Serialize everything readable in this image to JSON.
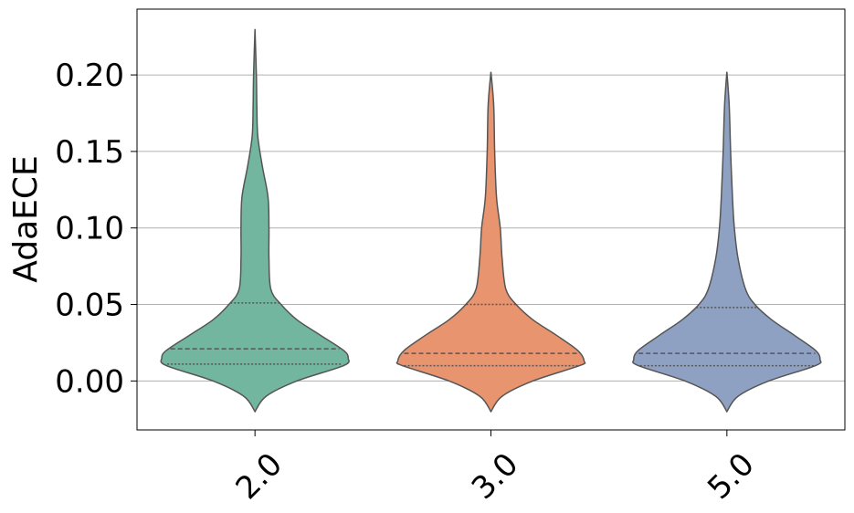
{
  "chart_data": {
    "type": "violin",
    "ylabel": "AdaECE",
    "categories": [
      "2.0",
      "3.0",
      "5.0"
    ],
    "ylim": [
      -0.032,
      0.243
    ],
    "yticks": [
      {
        "value": 0,
        "label": "0.00"
      },
      {
        "value": 0.05,
        "label": "0.05"
      },
      {
        "value": 0.1,
        "label": "0.10"
      },
      {
        "value": 0.15,
        "label": "0.15"
      },
      {
        "value": 0.2,
        "label": "0.20"
      }
    ],
    "grid": true,
    "edge_color": "#555555",
    "violins": [
      {
        "color": "#72b6a0",
        "q1": 0.011,
        "median": 0.021,
        "q3": 0.051,
        "kde_y": [
          -0.02,
          -0.01,
          0,
          0.01,
          0.015,
          0.02,
          0.03,
          0.04,
          0.05,
          0.06,
          0.08,
          0.1,
          0.12,
          0.14,
          0.16,
          0.18,
          0.2,
          0.23
        ],
        "kde_width": [
          0,
          0.12,
          0.45,
          0.95,
          1,
          0.95,
          0.7,
          0.45,
          0.28,
          0.17,
          0.15,
          0.15,
          0.14,
          0.08,
          0.03,
          0.02,
          0.015,
          0
        ]
      },
      {
        "color": "#e8956f",
        "q1": 0.01,
        "median": 0.018,
        "q3": 0.05,
        "kde_y": [
          -0.02,
          -0.01,
          0,
          0.01,
          0.013,
          0.02,
          0.03,
          0.04,
          0.05,
          0.06,
          0.08,
          0.1,
          0.12,
          0.15,
          0.18,
          0.202
        ],
        "kde_width": [
          0,
          0.12,
          0.45,
          0.95,
          1,
          0.93,
          0.7,
          0.45,
          0.27,
          0.16,
          0.12,
          0.1,
          0.06,
          0.04,
          0.03,
          0
        ]
      },
      {
        "color": "#8fa1c3",
        "q1": 0.01,
        "median": 0.018,
        "q3": 0.048,
        "kde_y": [
          -0.02,
          -0.01,
          0,
          0.01,
          0.014,
          0.02,
          0.03,
          0.04,
          0.05,
          0.06,
          0.08,
          0.1,
          0.12,
          0.15,
          0.18,
          0.202
        ],
        "kde_width": [
          0,
          0.12,
          0.45,
          0.95,
          1,
          0.95,
          0.72,
          0.48,
          0.3,
          0.2,
          0.12,
          0.08,
          0.06,
          0.04,
          0.025,
          0
        ]
      }
    ]
  }
}
